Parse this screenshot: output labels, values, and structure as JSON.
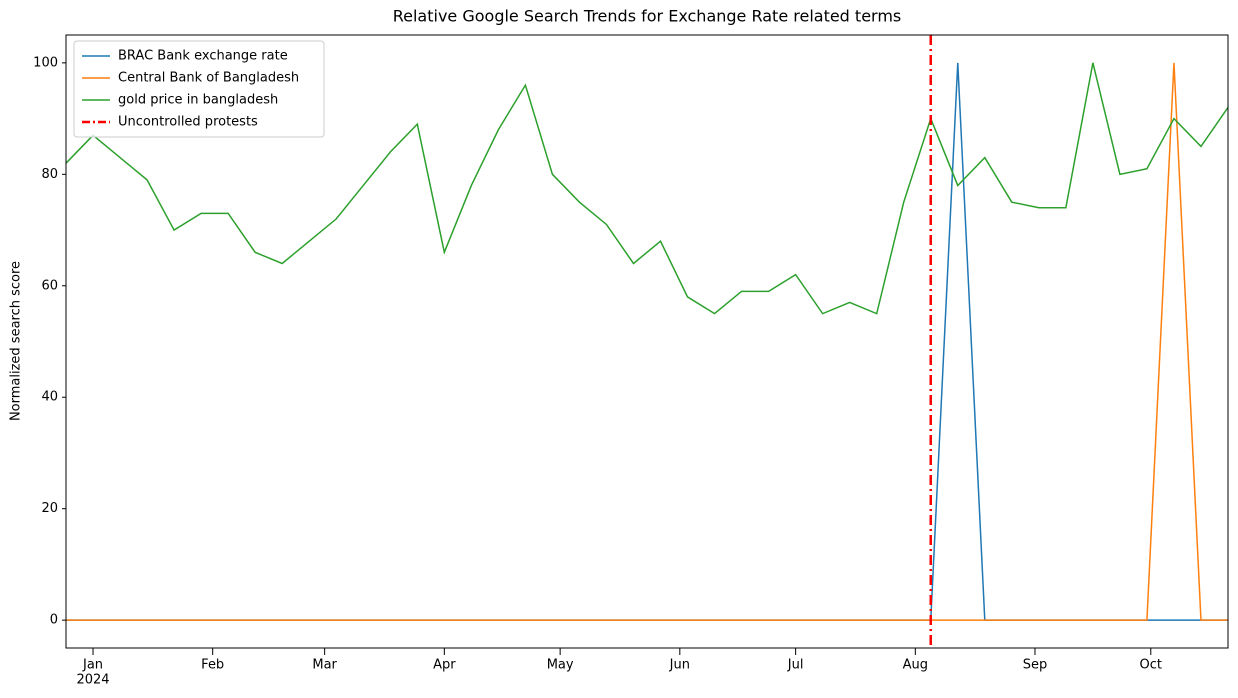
{
  "chart_data": {
    "type": "line",
    "title": "Relative Google Search Trends for Exchange Rate related terms",
    "ylabel": "Normalized search score",
    "x": [
      -7,
      0,
      7,
      14,
      21,
      28,
      35,
      42,
      49,
      56,
      63,
      70,
      77,
      84,
      91,
      98,
      105,
      112,
      119,
      126,
      133,
      140,
      147,
      154,
      161,
      168,
      175,
      182,
      189,
      196,
      203,
      210,
      217,
      224,
      231,
      238,
      245,
      252,
      259,
      266,
      273,
      280,
      287,
      294
    ],
    "series": [
      {
        "name": "BRAC Bank exchange rate",
        "color": "#1f77b4",
        "values": [
          0,
          0,
          0,
          0,
          0,
          0,
          0,
          0,
          0,
          0,
          0,
          0,
          0,
          0,
          0,
          0,
          0,
          0,
          0,
          0,
          0,
          0,
          0,
          0,
          0,
          0,
          0,
          0,
          0,
          0,
          0,
          0,
          0,
          100,
          0,
          0,
          0,
          0,
          0,
          0,
          0,
          0,
          0,
          0
        ]
      },
      {
        "name": "Central Bank of Bangladesh",
        "color": "#ff7f0e",
        "values": [
          0,
          0,
          0,
          0,
          0,
          0,
          0,
          0,
          0,
          0,
          0,
          0,
          0,
          0,
          0,
          0,
          0,
          0,
          0,
          0,
          0,
          0,
          0,
          0,
          0,
          0,
          0,
          0,
          0,
          0,
          0,
          0,
          0,
          0,
          0,
          0,
          0,
          0,
          0,
          0,
          0,
          100,
          0,
          0
        ]
      },
      {
        "name": "gold price in bangladesh",
        "color": "#2ca02c",
        "values": [
          82,
          87,
          83,
          79,
          70,
          73,
          73,
          66,
          64,
          68,
          72,
          78,
          84,
          89,
          66,
          78,
          88,
          96,
          80,
          75,
          71,
          64,
          68,
          58,
          55,
          59,
          59,
          62,
          55,
          57,
          55,
          75,
          90,
          78,
          83,
          75,
          74,
          74,
          100,
          80,
          81,
          90,
          85,
          92
        ]
      }
    ],
    "vlines": [
      {
        "x": 217,
        "name": "Uncontrolled protests",
        "color": "#ff0000"
      }
    ],
    "xlim": [
      -7,
      294
    ],
    "xticks": [
      {
        "value": 0,
        "label": "Jan"
      },
      {
        "value": 31,
        "label": "Feb"
      },
      {
        "value": 60,
        "label": "Mar"
      },
      {
        "value": 91,
        "label": "Apr"
      },
      {
        "value": 121,
        "label": "May"
      },
      {
        "value": 152,
        "label": "Jun"
      },
      {
        "value": 182,
        "label": "Jul"
      },
      {
        "value": 213,
        "label": "Aug"
      },
      {
        "value": 244,
        "label": "Sep"
      },
      {
        "value": 274,
        "label": "Oct"
      }
    ],
    "xtick_year": "2024",
    "ylim": [
      -5,
      105
    ],
    "yticks": [
      0,
      20,
      40,
      60,
      80,
      100
    ],
    "legend": "upper left",
    "grid": false
  }
}
